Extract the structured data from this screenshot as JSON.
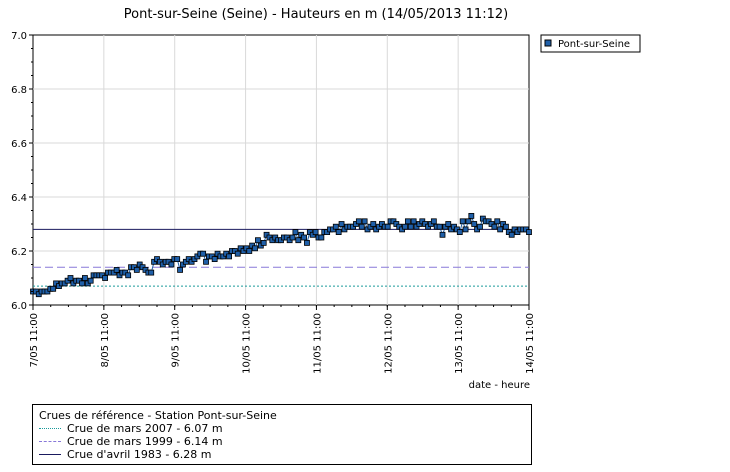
{
  "chart_data": {
    "type": "line",
    "title": "Pont-sur-Seine (Seine) - Hauteurs en m (14/05/2013 11:12)",
    "xlabel": "date - heure",
    "ylabel": "",
    "ylim": [
      6.0,
      7.0
    ],
    "yticks": [
      "6.0",
      "6.2",
      "6.4",
      "6.6",
      "6.8",
      "7.0"
    ],
    "xticks": [
      "7/05 11:00",
      "8/05 11:00",
      "9/05 11:00",
      "10/05 11:00",
      "11/05 11:00",
      "12/05 11:00",
      "13/05 11:00",
      "14/05 11:00"
    ],
    "grid": true,
    "legend_position": "top-right",
    "series": [
      {
        "name": "Pont-sur-Seine",
        "color": "#1f5fa8",
        "marker": "square",
        "values": [
          6.05,
          6.05,
          6.04,
          6.05,
          6.05,
          6.05,
          6.06,
          6.06,
          6.08,
          6.07,
          6.08,
          6.08,
          6.09,
          6.1,
          6.08,
          6.09,
          6.09,
          6.08,
          6.1,
          6.08,
          6.09,
          6.11,
          6.11,
          6.11,
          6.11,
          6.1,
          6.12,
          6.12,
          6.12,
          6.13,
          6.11,
          6.12,
          6.12,
          6.11,
          6.14,
          6.14,
          6.13,
          6.15,
          6.14,
          6.13,
          6.12,
          6.12,
          6.16,
          6.17,
          6.16,
          6.15,
          6.16,
          6.16,
          6.15,
          6.17,
          6.17,
          6.13,
          6.15,
          6.16,
          6.17,
          6.16,
          6.17,
          6.18,
          6.19,
          6.19,
          6.16,
          6.18,
          6.18,
          6.17,
          6.19,
          6.18,
          6.18,
          6.19,
          6.18,
          6.2,
          6.2,
          6.19,
          6.21,
          6.2,
          6.21,
          6.2,
          6.22,
          6.21,
          6.24,
          6.22,
          6.23,
          6.26,
          6.25,
          6.24,
          6.25,
          6.24,
          6.24,
          6.25,
          6.25,
          6.24,
          6.25,
          6.27,
          6.24,
          6.26,
          6.25,
          6.23,
          6.27,
          6.26,
          6.27,
          6.25,
          6.25,
          6.27,
          6.27,
          6.28,
          6.28,
          6.29,
          6.27,
          6.3,
          6.28,
          6.29,
          6.29,
          6.29,
          6.3,
          6.31,
          6.29,
          6.31,
          6.28,
          6.29,
          6.3,
          6.28,
          6.29,
          6.3,
          6.29,
          6.29,
          6.31,
          6.31,
          6.3,
          6.29,
          6.28,
          6.29,
          6.31,
          6.29,
          6.31,
          6.29,
          6.3,
          6.31,
          6.3,
          6.29,
          6.3,
          6.31,
          6.29,
          6.29,
          6.26,
          6.29,
          6.3,
          6.28,
          6.29,
          6.28,
          6.27,
          6.31,
          6.28,
          6.31,
          6.33,
          6.3,
          6.28,
          6.29,
          6.32,
          6.31,
          6.31,
          6.3,
          6.29,
          6.31,
          6.28,
          6.3,
          6.29,
          6.27,
          6.26,
          6.28,
          6.27,
          6.28,
          6.28,
          6.28,
          6.27
        ]
      }
    ],
    "reference_lines": [
      {
        "label": "Crue de mars 2007 - 6.07 m",
        "value": 6.07,
        "color": "#1a9a9a",
        "style": "dotted"
      },
      {
        "label": "Crue de mars 1999 - 6.14 m",
        "value": 6.14,
        "color": "#8878d8",
        "style": "dashed"
      },
      {
        "label": "Crue d'avril 1983 - 6.28 m",
        "value": 6.28,
        "color": "#1a1a5e",
        "style": "solid"
      }
    ],
    "reference_legend_title": "Crues de référence - Station Pont-sur-Seine"
  }
}
